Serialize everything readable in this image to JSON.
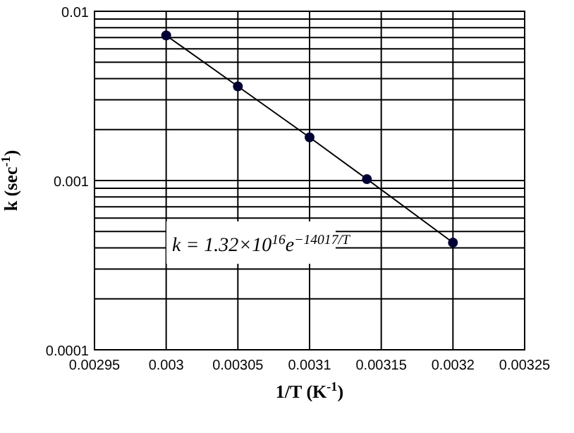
{
  "chart_data": {
    "type": "line",
    "xlabel": "1/T (K$^{-1}$)",
    "ylabel": "k (sec$^{-1}$)",
    "x": [
      0.003,
      0.00305,
      0.0031,
      0.00314,
      0.0032
    ],
    "series": [
      {
        "color": "#000033",
        "values": [
          0.0072,
          0.0036,
          0.0018,
          0.00102,
          0.00043
        ]
      }
    ],
    "log": true,
    "marker": "circle",
    "line_style": "solid",
    "grid": true,
    "xlim": [
      0.00295,
      0.00325
    ],
    "xticks": [
      0.00295,
      0.003,
      0.00305,
      0.0031,
      0.00315,
      0.0032,
      0.00325
    ],
    "ylim": [
      0.0001,
      0.01
    ],
    "yticks": [
      0.0001,
      {
        "value": 0.0002,
        "label": null
      },
      {
        "value": 0.0003,
        "label": null
      },
      {
        "value": 0.0004,
        "label": null
      },
      {
        "value": 0.0005,
        "label": null
      },
      {
        "value": 0.0006,
        "label": null
      },
      {
        "value": 0.0007,
        "label": null
      },
      {
        "value": 0.0008,
        "label": null
      },
      {
        "value": 0.0009,
        "label": null
      },
      0.001,
      {
        "value": 0.002,
        "label": null
      },
      {
        "value": 0.003,
        "label": null
      },
      {
        "value": 0.004,
        "label": null
      },
      {
        "value": 0.005,
        "label": null
      },
      {
        "value": 0.006,
        "label": null
      },
      {
        "value": 0.007,
        "label": null
      },
      {
        "value": 0.008,
        "label": null
      },
      {
        "value": 0.009,
        "label": null
      },
      0.01
    ],
    "annotations": [
      "k = 1.32×10$^{16}$e$^{−14017/T}$"
    ]
  }
}
